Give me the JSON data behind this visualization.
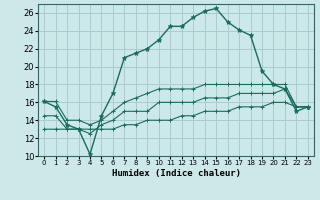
{
  "xlabel": "Humidex (Indice chaleur)",
  "background_color": "#cce8e8",
  "grid_color": "#aacccc",
  "line_color": "#1a6b5a",
  "xlim": [
    -0.5,
    23.5
  ],
  "ylim": [
    10,
    27
  ],
  "yticks": [
    10,
    12,
    14,
    16,
    18,
    20,
    22,
    24,
    26
  ],
  "xticks": [
    0,
    1,
    2,
    3,
    4,
    5,
    6,
    7,
    8,
    9,
    10,
    11,
    12,
    13,
    14,
    15,
    16,
    17,
    18,
    19,
    20,
    21,
    22,
    23
  ],
  "hours": [
    0,
    1,
    2,
    3,
    4,
    5,
    6,
    7,
    8,
    9,
    10,
    11,
    12,
    13,
    14,
    15,
    16,
    17,
    18,
    19,
    20,
    21,
    22,
    23
  ],
  "humidex": [
    16.1,
    15.5,
    13.5,
    13.0,
    10.2,
    14.5,
    17.0,
    21.0,
    21.5,
    22.0,
    23.0,
    24.5,
    24.5,
    25.5,
    26.2,
    26.5,
    25.0,
    24.1,
    23.5,
    19.5,
    18.0,
    17.5,
    15.0,
    15.5
  ],
  "temp_max": [
    16.1,
    16.1,
    14.0,
    14.0,
    13.5,
    14.0,
    15.0,
    16.0,
    16.5,
    17.0,
    17.5,
    17.5,
    17.5,
    17.5,
    18.0,
    18.0,
    18.0,
    18.0,
    18.0,
    18.0,
    18.0,
    18.0,
    15.5,
    15.5
  ],
  "temp_min": [
    13.0,
    13.0,
    13.0,
    13.0,
    13.0,
    13.0,
    13.0,
    13.5,
    13.5,
    14.0,
    14.0,
    14.0,
    14.5,
    14.5,
    15.0,
    15.0,
    15.0,
    15.5,
    15.5,
    15.5,
    16.0,
    16.0,
    15.5,
    15.5
  ],
  "temp_avg": [
    14.5,
    14.5,
    13.0,
    13.0,
    12.5,
    13.5,
    14.0,
    15.0,
    15.0,
    15.0,
    16.0,
    16.0,
    16.0,
    16.0,
    16.5,
    16.5,
    16.5,
    17.0,
    17.0,
    17.0,
    17.0,
    17.5,
    15.5,
    15.5
  ]
}
